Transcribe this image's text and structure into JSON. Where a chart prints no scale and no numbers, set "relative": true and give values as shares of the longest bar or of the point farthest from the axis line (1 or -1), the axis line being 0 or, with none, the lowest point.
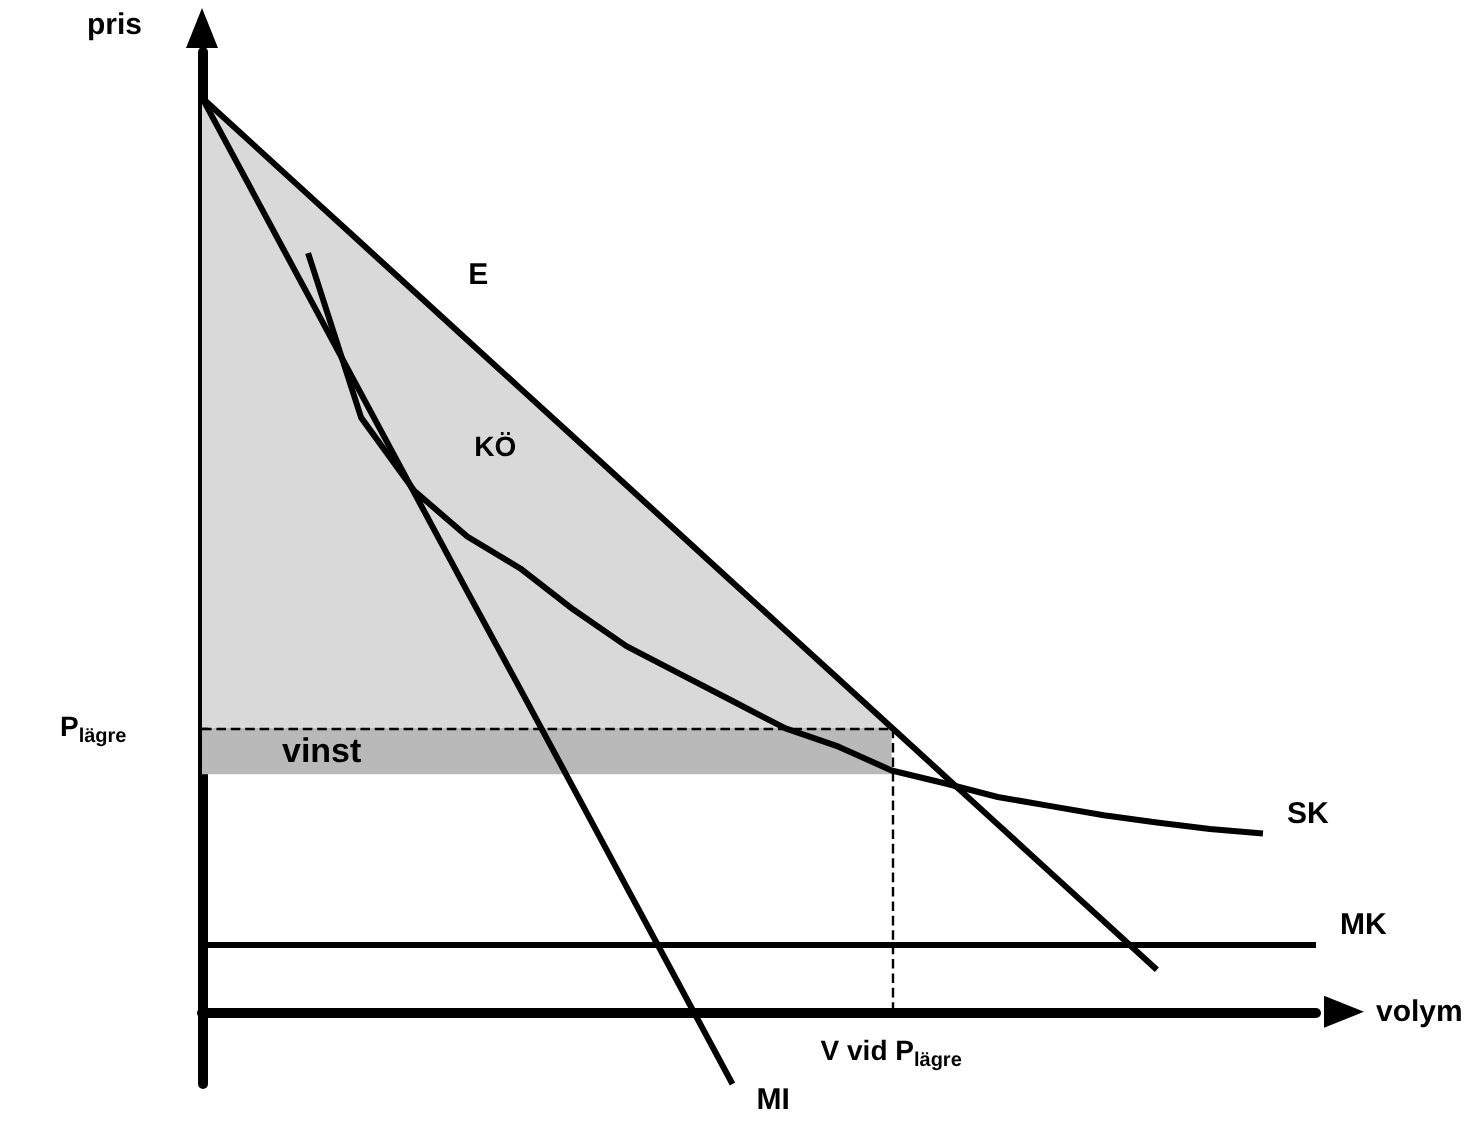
{
  "chart_data": {
    "type": "line",
    "relative": true,
    "xlabel": "volym",
    "ylabel": "pris",
    "grid": false,
    "legend": false,
    "marker": "none",
    "line_style": "solid",
    "categories": [
      null,
      null,
      null,
      null,
      null,
      null,
      null,
      null,
      null,
      null,
      null,
      null,
      null,
      null,
      null,
      null,
      null,
      null,
      null,
      null,
      null,
      null
    ],
    "series": [
      {
        "name": "E",
        "color": "#000000",
        "values": [
          1,
          0.947,
          0.894,
          0.841,
          0.788,
          0.735,
          0.682,
          0.629,
          0.576,
          0.523,
          0.47,
          0.417,
          0.364,
          0.311,
          0.258,
          0.205,
          0.152,
          0.099,
          0.046,
          null,
          null,
          null
        ],
        "lower": [
          0.311,
          0.311,
          0.311,
          0.311,
          0.311,
          0.311,
          0.311,
          0.311,
          0.311,
          0.311,
          0.311,
          0.311,
          0.311,
          0.311,
          null,
          null,
          null,
          null,
          null,
          null,
          null,
          null
        ],
        "upper": [
          1,
          0.947,
          0.894,
          0.841,
          0.788,
          0.735,
          0.682,
          0.629,
          0.576,
          0.523,
          0.47,
          0.417,
          0.364,
          0.311,
          null,
          null,
          null,
          null,
          null,
          null,
          null,
          null
        ]
      },
      {
        "name": "MI",
        "color": "#000000",
        "values": [
          1,
          0.892,
          0.784,
          0.676,
          0.568,
          0.46,
          0.353,
          0.245,
          0.137,
          0.029,
          -0.079,
          null,
          null,
          null,
          null,
          null,
          null,
          null,
          null,
          null,
          null,
          null
        ]
      },
      {
        "name": "SK",
        "color": "#000000",
        "values": [
          null,
          null,
          0.83,
          0.65,
          0.57,
          0.52,
          0.485,
          0.44,
          0.4,
          0.37,
          0.34,
          0.31,
          0.29,
          0.264,
          0.25,
          0.235,
          0.225,
          0.215,
          0.207,
          0.2,
          0.195,
          null
        ]
      },
      {
        "name": "MK",
        "color": "#000000",
        "values": [
          0.073,
          0.073,
          0.073,
          0.073,
          0.073,
          0.073,
          0.073,
          0.073,
          0.073,
          0.073,
          0.073,
          0.073,
          0.073,
          0.073,
          0.073,
          0.073,
          0.073,
          0.073,
          0.073,
          0.073,
          0.073,
          0.073
        ]
      }
    ],
    "ref_lines": [
      {
        "axis": "y",
        "value": 0.311,
        "label": "P$_{lägre}$",
        "line_style": "dashed",
        "color": "#000000"
      },
      {
        "axis": "x",
        "label": "V vid P$_{lägre}$",
        "line_style": "dashed",
        "color": "#000000"
      }
    ],
    "bands": [
      {
        "axis": "y",
        "from": 0.26,
        "to": 0.311,
        "label": "vinst",
        "color": "#b9b9b9"
      }
    ],
    "annotations": [
      "KÖ"
    ]
  }
}
